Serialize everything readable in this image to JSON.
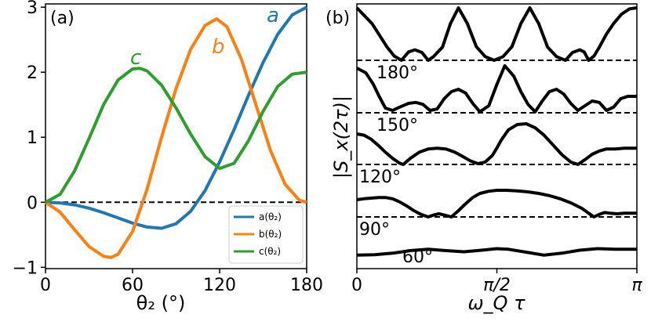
{
  "chart_data": [
    {
      "panel": "(a)",
      "type": "line",
      "xlabel": "θ₂ (°)",
      "xlim": [
        0,
        180
      ],
      "ylim": [
        -1.02,
        3.05
      ],
      "xticks": [
        0,
        60,
        120,
        180
      ],
      "xtick_labels": [
        "0",
        "60",
        "120",
        "180"
      ],
      "yticks": [
        -1,
        0,
        1,
        2,
        3
      ],
      "ytick_labels": [
        "−1",
        "0",
        "1",
        "2",
        "3"
      ],
      "reference_line": {
        "y": 0,
        "style": "dashed"
      },
      "legend": {
        "position": "lower-right",
        "entries": [
          "a(θ₂)",
          "b(θ₂)",
          "c(θ₂)"
        ]
      },
      "series": [
        {
          "name": "a(θ₂)",
          "label": "a",
          "color": "#1f77b4",
          "x": [
            0,
            10,
            20,
            30,
            40,
            50,
            60,
            70,
            80,
            90,
            100,
            110,
            120,
            130,
            140,
            150,
            160,
            170,
            180
          ],
          "values": [
            0,
            -0.01,
            -0.04,
            -0.09,
            -0.16,
            -0.24,
            -0.32,
            -0.38,
            -0.4,
            -0.33,
            -0.14,
            0.18,
            0.62,
            1.12,
            1.65,
            2.15,
            2.58,
            2.88,
            3.0
          ]
        },
        {
          "name": "b(θ₂)",
          "label": "b",
          "color": "#ff7f0e",
          "x": [
            0,
            10,
            20,
            30,
            40,
            45,
            50,
            60,
            70,
            80,
            90,
            100,
            110,
            118,
            125,
            135,
            145,
            155,
            165,
            175,
            180
          ],
          "values": [
            0,
            -0.15,
            -0.42,
            -0.68,
            -0.83,
            -0.85,
            -0.8,
            -0.45,
            0.2,
            1.0,
            1.75,
            2.35,
            2.72,
            2.82,
            2.7,
            2.2,
            1.5,
            0.8,
            0.28,
            0.03,
            0
          ]
        },
        {
          "name": "c(θ₂)",
          "label": "c",
          "color": "#2ca02c",
          "x": [
            0,
            10,
            20,
            30,
            40,
            50,
            60,
            65,
            70,
            80,
            90,
            100,
            110,
            120,
            130,
            140,
            150,
            160,
            170,
            180
          ],
          "values": [
            0,
            0.12,
            0.48,
            0.98,
            1.5,
            1.88,
            2.05,
            2.06,
            2.02,
            1.8,
            1.45,
            1.05,
            0.7,
            0.52,
            0.6,
            0.95,
            1.4,
            1.78,
            1.97,
            2.0
          ]
        }
      ]
    },
    {
      "panel": "(b)",
      "type": "line",
      "xlabel": "ω_Q τ",
      "ylabel": "|S_x(2τ)|",
      "xlim": [
        0,
        3.1416
      ],
      "xtick_labels": [
        "0",
        "π/2",
        "π"
      ],
      "xticks": [
        0,
        1.5708,
        3.1416
      ],
      "traces": [
        {
          "label": "180°",
          "x": [
            0.0,
            0.17,
            0.34,
            0.42,
            0.5,
            0.58,
            0.65,
            0.73,
            0.8,
            0.86,
            0.96,
            1.05,
            1.14,
            1.24,
            1.34,
            1.44,
            1.54,
            1.64,
            1.74,
            1.84,
            1.94,
            2.04,
            2.14,
            2.24,
            2.34,
            2.42,
            2.5,
            2.55,
            2.6,
            2.66,
            2.72,
            2.8,
            2.88,
            2.97,
            3.06,
            3.1416
          ],
          "values": [
            1.0,
            0.7,
            0.25,
            0.08,
            0.0,
            0.16,
            0.2,
            0.15,
            0.0,
            0.07,
            0.25,
            0.7,
            1.0,
            0.7,
            0.26,
            0.07,
            0.0,
            0.07,
            0.26,
            0.7,
            1.0,
            0.7,
            0.25,
            0.07,
            0.0,
            0.15,
            0.2,
            0.16,
            0.0,
            0.08,
            0.25,
            0.5,
            0.7,
            0.88,
            0.98,
            1.0
          ]
        },
        {
          "label": "150°",
          "x": [
            0.0,
            0.1,
            0.18,
            0.25,
            0.32,
            0.4,
            0.48,
            0.58,
            0.66,
            0.74,
            0.82,
            0.9,
            0.98,
            1.06,
            1.14,
            1.22,
            1.3,
            1.38,
            1.48,
            1.57,
            1.66,
            1.76,
            1.84,
            1.92,
            2.0,
            2.08,
            2.16,
            2.24,
            2.32,
            2.4,
            2.48,
            2.56,
            2.64,
            2.72,
            2.8,
            2.88,
            2.96,
            3.04,
            3.1416
          ],
          "values": [
            0.95,
            0.85,
            0.62,
            0.35,
            0.1,
            0.05,
            0.12,
            0.2,
            0.22,
            0.18,
            0.05,
            0.08,
            0.3,
            0.45,
            0.5,
            0.42,
            0.2,
            0.02,
            0.15,
            0.6,
            1.0,
            0.78,
            0.45,
            0.18,
            0.02,
            0.25,
            0.45,
            0.5,
            0.4,
            0.2,
            0.05,
            0.15,
            0.25,
            0.22,
            0.05,
            0.12,
            0.3,
            0.35,
            0.35
          ]
        },
        {
          "label": "120°",
          "x": [
            0.0,
            0.08,
            0.16,
            0.24,
            0.32,
            0.4,
            0.48,
            0.52,
            0.6,
            0.7,
            0.8,
            0.9,
            1.0,
            1.1,
            1.2,
            1.28,
            1.36,
            1.44,
            1.52,
            1.57,
            1.62,
            1.7,
            1.8,
            1.9,
            2.0,
            2.1,
            2.2,
            2.3,
            2.4,
            2.48,
            2.56,
            2.64,
            2.72,
            2.8,
            2.9,
            3.0,
            3.1416
          ],
          "values": [
            0.75,
            0.72,
            0.62,
            0.47,
            0.3,
            0.15,
            0.03,
            0.0,
            0.15,
            0.3,
            0.38,
            0.4,
            0.38,
            0.3,
            0.18,
            0.08,
            0.02,
            0.06,
            0.22,
            0.4,
            0.6,
            0.85,
            0.98,
            1.0,
            0.9,
            0.72,
            0.48,
            0.24,
            0.06,
            0.0,
            0.12,
            0.25,
            0.33,
            0.38,
            0.38,
            0.4,
            0.4
          ]
        },
        {
          "label": "90°",
          "x": [
            0.0,
            0.08,
            0.16,
            0.24,
            0.32,
            0.4,
            0.48,
            0.56,
            0.64,
            0.72,
            0.8,
            0.86,
            0.92,
            0.98,
            1.06,
            1.14,
            1.22,
            1.3,
            1.38,
            1.48,
            1.57,
            1.68,
            1.8,
            1.92,
            2.04,
            2.16,
            2.28,
            2.4,
            2.52,
            2.6,
            2.66,
            2.72,
            2.78,
            2.84,
            2.92,
            3.0,
            3.1416
          ],
          "values": [
            0.55,
            0.58,
            0.6,
            0.62,
            0.62,
            0.58,
            0.48,
            0.35,
            0.2,
            0.08,
            0.0,
            0.06,
            0.1,
            0.06,
            0.0,
            0.2,
            0.42,
            0.62,
            0.75,
            0.82,
            0.85,
            0.85,
            0.83,
            0.8,
            0.75,
            0.68,
            0.58,
            0.45,
            0.28,
            0.12,
            0.0,
            0.08,
            0.14,
            0.12,
            0.1,
            0.12,
            0.12
          ]
        },
        {
          "label": "60°",
          "x": [
            0.0,
            0.2,
            0.4,
            0.6,
            0.8,
            1.0,
            1.2,
            1.4,
            1.57,
            1.7,
            1.9,
            2.1,
            2.3,
            2.5,
            2.7,
            2.9,
            3.1416
          ],
          "values": [
            0.05,
            0.07,
            0.15,
            0.28,
            0.35,
            0.28,
            0.22,
            0.3,
            0.38,
            0.35,
            0.2,
            0.05,
            0.15,
            0.3,
            0.38,
            0.35,
            0.35
          ]
        }
      ]
    }
  ]
}
